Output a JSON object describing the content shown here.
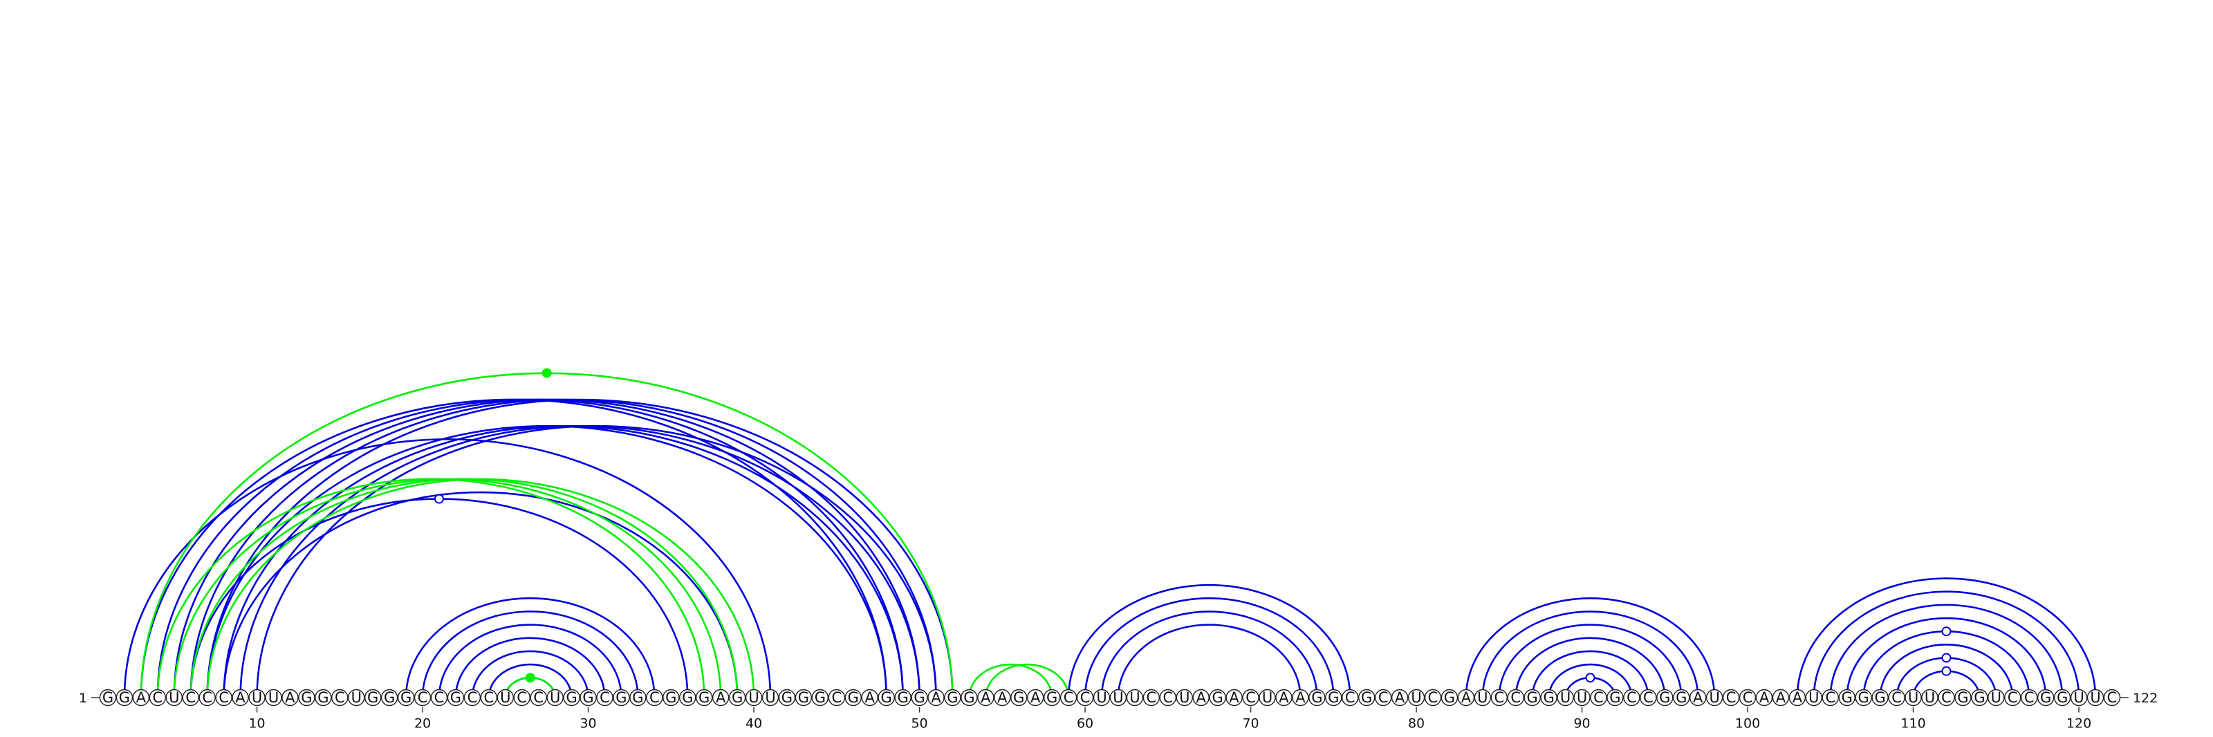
{
  "sequence": "GGACUCCCAUUAGGCUGGGCCGCCUCCUGGCGGCGGGAGUUGGGCGAGGGAGGAAGAGCCUUUCCUAGACUAAGGCGCAUCGAUCCGGUUCGCCGGAUCCAAAUCGGGCUUCGGUCCGGUUC",
  "length": 122,
  "start_label": "1",
  "end_label": "122",
  "tick_labels": [
    "10",
    "20",
    "30",
    "40",
    "50",
    "60",
    "70",
    "80",
    "90",
    "100",
    "110",
    "120"
  ],
  "tick_positions": [
    10,
    20,
    30,
    40,
    50,
    60,
    70,
    80,
    90,
    100,
    110,
    120
  ],
  "colors": {
    "primary_arc": "#0000dd",
    "secondary_arc": "#00ee00",
    "backbone": "#333333",
    "nucleotide_fill": "#ffffff"
  },
  "blue_pairs": [
    [
      2,
      41
    ],
    [
      3,
      48
    ],
    [
      4,
      49
    ],
    [
      5,
      50
    ],
    [
      6,
      51
    ],
    [
      7,
      52
    ],
    [
      8,
      39
    ],
    [
      19,
      34
    ],
    [
      20,
      33
    ],
    [
      21,
      32
    ],
    [
      22,
      31
    ],
    [
      23,
      30
    ],
    [
      24,
      29
    ],
    [
      25,
      28
    ],
    [
      59,
      76
    ],
    [
      60,
      75
    ],
    [
      61,
      74
    ],
    [
      62,
      73
    ],
    [
      83,
      98
    ],
    [
      84,
      97
    ],
    [
      85,
      96
    ],
    [
      86,
      95
    ],
    [
      87,
      94
    ],
    [
      88,
      93
    ],
    [
      89,
      92
    ],
    [
      103,
      121
    ],
    [
      104,
      120
    ],
    [
      105,
      119
    ],
    [
      106,
      118
    ],
    [
      107,
      117
    ],
    [
      108,
      116
    ],
    [
      109,
      115
    ],
    [
      110,
      114
    ],
    [
      7,
      48
    ],
    [
      8,
      49
    ],
    [
      9,
      50
    ],
    [
      10,
      51
    ],
    [
      6,
      36
    ]
  ],
  "green_pairs": [
    [
      3,
      52
    ],
    [
      4,
      37
    ],
    [
      5,
      38
    ],
    [
      6,
      39
    ],
    [
      7,
      40
    ],
    [
      25,
      28
    ],
    [
      53,
      58
    ],
    [
      54,
      59
    ]
  ],
  "hollow_markers": [
    {
      "pair": [
        6,
        36
      ]
    },
    {
      "pair": [
        89,
        92
      ]
    },
    {
      "pair": [
        107,
        117
      ]
    },
    {
      "pair": [
        109,
        115
      ]
    },
    {
      "pair": [
        110,
        114
      ]
    }
  ],
  "filled_markers": [
    {
      "pair": [
        3,
        52
      ]
    },
    {
      "pair": [
        25,
        28
      ]
    }
  ]
}
